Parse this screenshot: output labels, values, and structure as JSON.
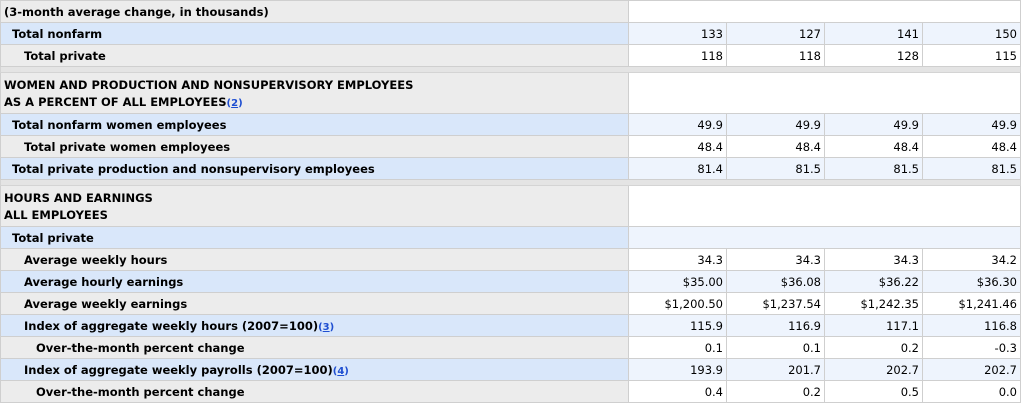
{
  "caption_top": "(3-month average change, in thousands)",
  "change_rows": [
    {
      "label": "Total nonfarm",
      "indent": 1,
      "hl": true,
      "values": [
        "133",
        "127",
        "141",
        "150"
      ]
    },
    {
      "label": "Total private",
      "indent": 2,
      "hl": false,
      "values": [
        "118",
        "118",
        "128",
        "115"
      ]
    }
  ],
  "women_section": {
    "title_line1": "WOMEN AND PRODUCTION AND NONSUPERVISORY EMPLOYEES",
    "title_line2": "AS A PERCENT OF ALL EMPLOYEES",
    "footnote": "2",
    "rows": [
      {
        "label": "Total nonfarm women employees",
        "indent": 1,
        "hl": true,
        "values": [
          "49.9",
          "49.9",
          "49.9",
          "49.9"
        ]
      },
      {
        "label": "Total private women employees",
        "indent": 2,
        "hl": false,
        "values": [
          "48.4",
          "48.4",
          "48.4",
          "48.4"
        ]
      },
      {
        "label": "Total private production and nonsupervisory employees",
        "indent": 1,
        "hl": true,
        "values": [
          "81.4",
          "81.5",
          "81.5",
          "81.5"
        ]
      }
    ]
  },
  "hours_section": {
    "title_line1": "HOURS AND EARNINGS",
    "title_line2": "ALL EMPLOYEES",
    "subheader": "Total private",
    "rows": [
      {
        "label": "Average weekly hours",
        "footnote": "",
        "indent": 2,
        "hl": false,
        "values": [
          "34.3",
          "34.3",
          "34.3",
          "34.2"
        ]
      },
      {
        "label": "Average hourly earnings",
        "footnote": "",
        "indent": 2,
        "hl": true,
        "values": [
          "$35.00",
          "$36.08",
          "$36.22",
          "$36.30"
        ]
      },
      {
        "label": "Average weekly earnings",
        "footnote": "",
        "indent": 2,
        "hl": false,
        "values": [
          "$1,200.50",
          "$1,237.54",
          "$1,242.35",
          "$1,241.46"
        ]
      },
      {
        "label": "Index of aggregate weekly hours (2007=100)",
        "footnote": "3",
        "indent": 2,
        "hl": true,
        "values": [
          "115.9",
          "116.9",
          "117.1",
          "116.8"
        ]
      },
      {
        "label": "Over-the-month percent change",
        "footnote": "",
        "indent": 3,
        "hl": false,
        "values": [
          "0.1",
          "0.1",
          "0.2",
          "-0.3"
        ]
      },
      {
        "label": "Index of aggregate weekly payrolls (2007=100)",
        "footnote": "4",
        "indent": 2,
        "hl": true,
        "values": [
          "193.9",
          "201.7",
          "202.7",
          "202.7"
        ]
      },
      {
        "label": "Over-the-month percent change",
        "footnote": "",
        "indent": 3,
        "hl": false,
        "values": [
          "0.4",
          "0.2",
          "0.5",
          "0.0"
        ]
      }
    ]
  }
}
